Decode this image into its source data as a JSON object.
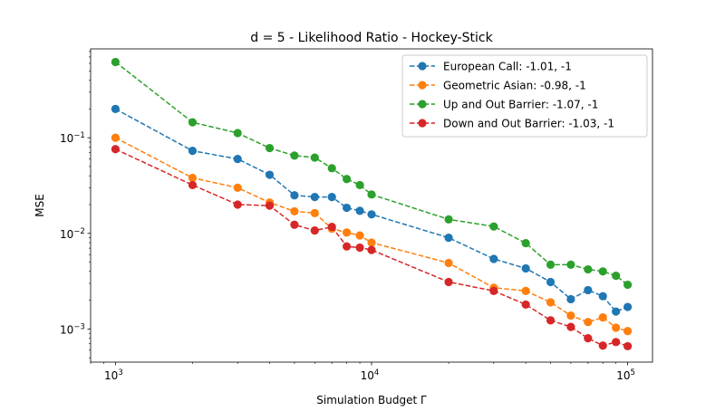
{
  "chart_data": {
    "type": "line",
    "title": "d = 5 - Likelihood Ratio - Hockey-Stick",
    "xlabel": "Simulation Budget Γ",
    "ylabel": "MSE",
    "xscale": "log",
    "yscale": "log",
    "xlim": [
      800,
      125000
    ],
    "ylim": [
      0.00045,
      0.85
    ],
    "grid": false,
    "legend_position": "upper right",
    "x_ticks": [
      {
        "value": 1000,
        "base": "10",
        "exp": "3"
      },
      {
        "value": 10000,
        "base": "10",
        "exp": "4"
      },
      {
        "value": 100000,
        "base": "10",
        "exp": "5"
      }
    ],
    "y_ticks": [
      {
        "value": 0.001,
        "base": "10",
        "exp": "−3"
      },
      {
        "value": 0.01,
        "base": "10",
        "exp": "−2"
      },
      {
        "value": 0.1,
        "base": "10",
        "exp": "−1"
      }
    ],
    "x": [
      1000,
      2000,
      3000,
      4000,
      5000,
      6000,
      7000,
      8000,
      9000,
      10000,
      20000,
      30000,
      40000,
      50000,
      60000,
      70000,
      80000,
      90000,
      100000
    ],
    "series": [
      {
        "name": "European Call: -1.01, -1",
        "color": "#1f77b4",
        "values": [
          0.2,
          0.073,
          0.06,
          0.041,
          0.025,
          0.024,
          0.024,
          0.0185,
          0.0172,
          0.0158,
          0.009,
          0.0054,
          0.0043,
          0.0031,
          0.00205,
          0.00255,
          0.0022,
          0.00152,
          0.0017
        ]
      },
      {
        "name": "Geometric Asian: -0.98, -1",
        "color": "#ff7f0e",
        "values": [
          0.1,
          0.038,
          0.03,
          0.021,
          0.017,
          0.0163,
          0.0112,
          0.0102,
          0.0095,
          0.008,
          0.0049,
          0.0027,
          0.0025,
          0.0019,
          0.00138,
          0.00118,
          0.00132,
          0.00103,
          0.00095
        ]
      },
      {
        "name": "Up and Out Barrier: -1.07, -1",
        "color": "#2ca02c",
        "values": [
          0.62,
          0.145,
          0.112,
          0.078,
          0.065,
          0.062,
          0.048,
          0.037,
          0.032,
          0.0255,
          0.014,
          0.0118,
          0.0079,
          0.0047,
          0.0047,
          0.0042,
          0.004,
          0.0036,
          0.0029
        ]
      },
      {
        "name": "Down and Out Barrier: -1.03, -1",
        "color": "#d62728",
        "values": [
          0.076,
          0.032,
          0.02,
          0.0195,
          0.0123,
          0.0107,
          0.0117,
          0.0073,
          0.0071,
          0.0067,
          0.0031,
          0.0025,
          0.0018,
          0.00123,
          0.00105,
          0.0008,
          0.00067,
          0.00073,
          0.00066
        ]
      }
    ]
  }
}
